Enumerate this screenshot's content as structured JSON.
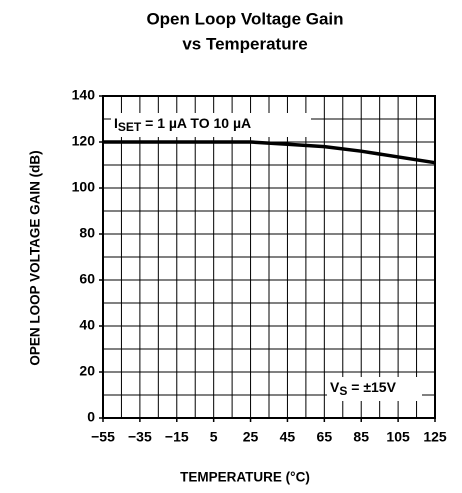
{
  "chart_data": {
    "type": "line",
    "title": [
      "Open Loop Voltage Gain",
      "vs Temperature"
    ],
    "x_label": "TEMPERATURE (°C)",
    "y_label": "OPEN LOOP VOLTAGE GAIN (dB)",
    "x": [
      -55,
      -35,
      -15,
      5,
      25,
      45,
      65,
      85,
      105,
      125
    ],
    "series": [
      {
        "name": "gain",
        "color": "#000000",
        "values": [
          120,
          120,
          120,
          120,
          120,
          119,
          118,
          116,
          113.5,
          111
        ]
      }
    ],
    "xlim": [
      -55,
      125
    ],
    "ylim": [
      0,
      140
    ],
    "xticks": [
      {
        "value": -55,
        "label": "−55"
      },
      {
        "value": -35,
        "label": "−35"
      },
      {
        "value": -15,
        "label": "−15"
      },
      5,
      25,
      45,
      65,
      85,
      105,
      125
    ],
    "yticks": [
      0,
      20,
      40,
      60,
      80,
      100,
      120,
      140
    ],
    "xgrid": [
      -45,
      -35,
      -25,
      -15,
      -5,
      5,
      15,
      25,
      35,
      45,
      55,
      65,
      75,
      85,
      95,
      105,
      115
    ],
    "ygrid": [
      10,
      20,
      30,
      40,
      50,
      60,
      70,
      80,
      90,
      100,
      110,
      120,
      130
    ],
    "grid": true,
    "annotations": [
      {
        "main": "I",
        "sub": "SET",
        "rest": " = 1 µA TO 10 µA"
      },
      {
        "main": "V",
        "sub": "S",
        "rest": " = ±15V"
      }
    ]
  }
}
